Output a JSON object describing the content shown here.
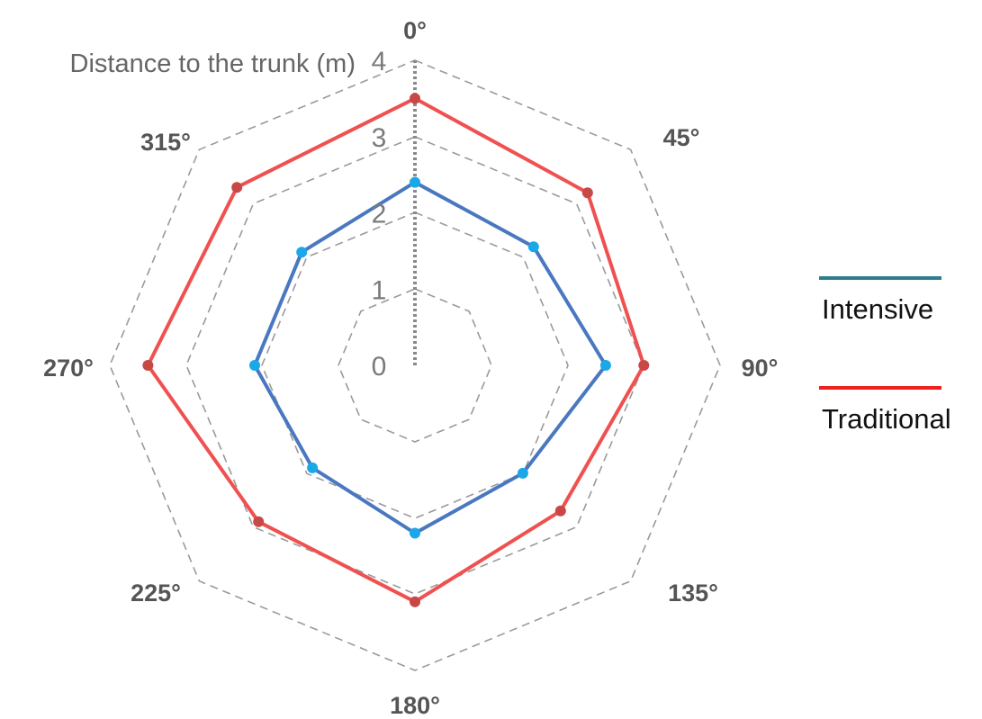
{
  "chart_data": {
    "type": "radar",
    "axis_title": "Distance to the trunk (m)",
    "angles": [
      "0°",
      "45°",
      "90°",
      "135°",
      "180°",
      "225°",
      "270°",
      "315°"
    ],
    "ring_labels": [
      "0",
      "1",
      "2",
      "3",
      "4"
    ],
    "rmax": 4,
    "grid": "dashed octagons",
    "legend_position": "right",
    "series": [
      {
        "name": "Intensive",
        "values": [
          2.4,
          2.2,
          2.5,
          2.0,
          2.2,
          1.9,
          2.1,
          2.1
        ],
        "line_color": "#4a78c0",
        "point_color": "#1ba8e8",
        "legend_color": "#2e7d8f"
      },
      {
        "name": "Traditional",
        "values": [
          3.5,
          3.2,
          3.0,
          2.7,
          3.1,
          2.9,
          3.5,
          3.3
        ],
        "line_color": "#f05050",
        "point_color": "#c84848",
        "legend_color": "#ee2020"
      }
    ]
  }
}
